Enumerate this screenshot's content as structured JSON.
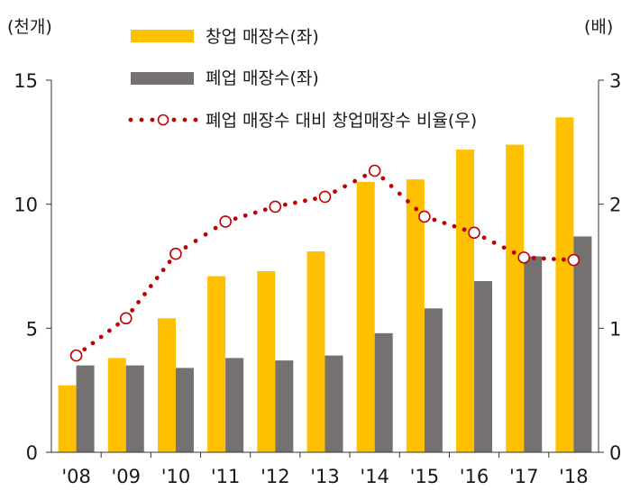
{
  "chart_data": {
    "type": "bar",
    "categories": [
      "'08",
      "'09",
      "'10",
      "'11",
      "'12",
      "'13",
      "'14",
      "'15",
      "'16",
      "'17",
      "'18"
    ],
    "series": [
      {
        "name": "창업 매장수(좌)",
        "kind": "bar",
        "axis": "left",
        "color": "#FFC000",
        "values": [
          2.7,
          3.8,
          5.4,
          7.1,
          7.3,
          8.1,
          10.9,
          11.0,
          12.2,
          12.4,
          13.5
        ]
      },
      {
        "name": "폐업 매장수(좌)",
        "kind": "bar",
        "axis": "left",
        "color": "#767171",
        "values": [
          3.5,
          3.5,
          3.4,
          3.8,
          3.7,
          3.9,
          4.8,
          5.8,
          6.9,
          7.9,
          8.7
        ]
      },
      {
        "name": "폐업 매장수 대비 창업매장수 비율(우)",
        "kind": "line",
        "axis": "right",
        "color": "#C00000",
        "values": [
          0.78,
          1.08,
          1.6,
          1.86,
          1.98,
          2.06,
          2.27,
          1.9,
          1.77,
          1.57,
          1.55
        ]
      }
    ],
    "left_axis": {
      "unit": "(천개)",
      "ylim": [
        0,
        15
      ],
      "ticks": [
        "0",
        "5",
        "10",
        "15"
      ]
    },
    "right_axis": {
      "unit": "(배)",
      "ylim": [
        0,
        3
      ],
      "ticks": [
        "0",
        "1",
        "2",
        "3"
      ]
    },
    "legend_position": "top-center",
    "grid": false
  }
}
